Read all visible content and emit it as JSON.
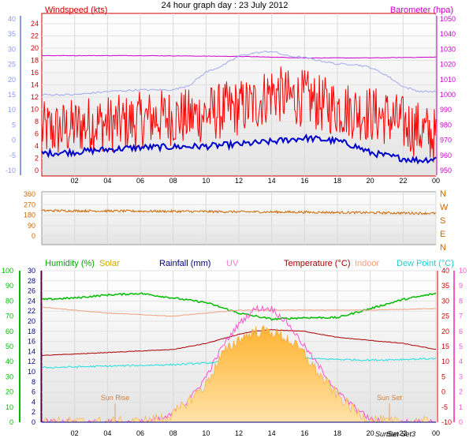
{
  "title": "24 hour graph day : 23 July 2012",
  "x_ticks": [
    "02",
    "04",
    "06",
    "08",
    "10",
    "12",
    "14",
    "16",
    "18",
    "20",
    "22",
    "00"
  ],
  "colors": {
    "wind": "#ff0000",
    "wind_avg": "#0000cc",
    "baro": "#cc00cc",
    "gust_baro_line": "#a0a8ee",
    "wind_dir": "#cc6600",
    "humidity": "#00bb00",
    "solar": "#ffb733",
    "rainfall": "#000080",
    "uv": "#ff55cc",
    "temperature": "#aa0000",
    "indoor": "#f0a080",
    "dew_point": "#22dddd",
    "axis_blue": "#8899ee",
    "axis_red": "#cc0000",
    "axis_magenta": "#cc00cc"
  },
  "chart_data": [
    {
      "id": "wind_baro",
      "type": "line",
      "left_label": "Windspeed (kts)",
      "right_label": "Barometer (hpa)",
      "outer_left_ticks": [
        "40",
        "35",
        "30",
        "25",
        "20",
        "15",
        "10",
        "5",
        "0",
        "-5",
        "-10"
      ],
      "left_ticks": [
        "24",
        "22",
        "20",
        "18",
        "16",
        "14",
        "12",
        "10",
        "8",
        "6",
        "4",
        "2",
        "0"
      ],
      "right_ticks": [
        "1050",
        "1040",
        "1030",
        "1020",
        "1010",
        "1000",
        "990",
        "980",
        "970",
        "960",
        "950"
      ],
      "left_range": [
        0,
        25
      ],
      "right_range": [
        947,
        1052
      ],
      "outer_range": [
        -10,
        40
      ],
      "series": [
        {
          "id": "wind_gust",
          "axis": "left",
          "color_key": "wind",
          "values_x": [
            1,
            3,
            5,
            7,
            9,
            11,
            13,
            14,
            15,
            16,
            17,
            19,
            21,
            23,
            24
          ],
          "values": [
            7,
            8,
            8,
            9,
            9,
            10,
            11,
            13,
            12,
            12,
            11,
            10,
            9,
            7,
            6
          ],
          "noise": 4.5
        },
        {
          "id": "wind_avg",
          "axis": "left",
          "color_key": "wind_avg",
          "values_x": [
            0,
            2,
            4,
            6,
            8,
            10,
            12,
            14,
            16,
            18,
            19,
            20,
            21,
            22,
            23,
            24
          ],
          "values": [
            3.4,
            3.6,
            4.0,
            4.3,
            4.4,
            4.5,
            4.8,
            5.2,
            5.8,
            5.3,
            4.6,
            3.5,
            3.0,
            2.6,
            2.3,
            2.6
          ],
          "noise": 0.5
        },
        {
          "id": "barometer",
          "axis": "right",
          "color_key": "baro",
          "values_x": [
            0,
            6,
            12,
            16,
            20,
            24
          ],
          "values": [
            1025,
            1025,
            1024.5,
            1023.5,
            1023.5,
            1024
          ],
          "noise": 0.15
        },
        {
          "id": "gust_light",
          "axis": "outer",
          "color_key": "gust_baro_line",
          "values_x": [
            0,
            2,
            4,
            6,
            8,
            9,
            10,
            11,
            12,
            13,
            14,
            15,
            16,
            18,
            19,
            20,
            21,
            22,
            23,
            24
          ],
          "values": [
            15,
            15,
            16,
            16.5,
            16.5,
            18,
            22,
            24,
            27,
            28,
            28.5,
            27,
            26.5,
            24.5,
            24.5,
            23.5,
            21,
            17.5,
            16,
            16
          ],
          "noise": 0.3
        }
      ]
    },
    {
      "id": "wind_direction",
      "type": "line",
      "left_ticks": [
        "360",
        "270",
        "180",
        "90",
        "0"
      ],
      "right_ticks": [
        "N",
        "W",
        "S",
        "E",
        "N"
      ],
      "range": [
        0,
        360
      ],
      "series": [
        {
          "id": "direction",
          "color_key": "wind_dir",
          "values_x": [
            0,
            4,
            8,
            12,
            16,
            20,
            24
          ],
          "values": [
            218,
            215,
            212,
            208,
            205,
            200,
            195
          ],
          "noise": 10
        }
      ]
    },
    {
      "id": "humidity_temperature",
      "type": "line",
      "labels": {
        "humidity": "Humidity (%)",
        "solar": "Solar",
        "rainfall": "Rainfall (mm)",
        "uv": "UV",
        "temperature": "Temperature (°C)",
        "indoor": "Indoor",
        "dew_point": "Dew Point (°C)"
      },
      "humidity_ticks": [
        "100",
        "90",
        "80",
        "70",
        "60",
        "50",
        "40",
        "30",
        "20",
        "10",
        "0"
      ],
      "rainfall_ticks": [
        "30",
        "28",
        "26",
        "24",
        "22",
        "20",
        "18",
        "16",
        "14",
        "12",
        "10",
        "8",
        "6",
        "4",
        "2",
        "0"
      ],
      "temperature_ticks": [
        "40",
        "35",
        "30",
        "25",
        "20",
        "15",
        "10",
        "5",
        "0",
        "-5",
        "-10"
      ],
      "uv_ticks": [
        "10",
        "9",
        "8",
        "7",
        "6",
        "5",
        "4",
        "3",
        "2",
        "1",
        "0"
      ],
      "humidity_range": [
        0,
        100
      ],
      "temperature_range": [
        -10,
        40
      ],
      "uv_range": [
        0,
        10
      ],
      "annotations": [
        "Sun Rise",
        "Sun Set",
        "SunSet",
        "Sun Set3"
      ],
      "series": [
        {
          "id": "humidity",
          "axis": "humidity",
          "color_key": "humidity",
          "values_x": [
            0,
            2,
            4,
            6,
            8,
            10,
            12,
            14,
            16,
            18,
            20,
            22,
            24
          ],
          "values": [
            81,
            82,
            84,
            85,
            82,
            79,
            72,
            68,
            69,
            69,
            75,
            81,
            85
          ],
          "noise": 0.6
        },
        {
          "id": "indoor",
          "axis": "temperature",
          "color_key": "indoor",
          "values_x": [
            0,
            4,
            8,
            12,
            16,
            20,
            24
          ],
          "values": [
            28,
            26,
            25,
            27,
            27,
            27,
            27.5
          ],
          "noise": 0.1
        },
        {
          "id": "temperature",
          "axis": "temperature",
          "color_key": "temperature",
          "values_x": [
            0,
            2,
            4,
            6,
            8,
            10,
            12,
            13,
            14,
            16,
            18,
            20,
            22,
            24
          ],
          "values": [
            12,
            12.5,
            13,
            13.5,
            14,
            16,
            19,
            20,
            20.5,
            20,
            18,
            17,
            16,
            14
          ],
          "noise": 0.1
        },
        {
          "id": "dew_point",
          "axis": "temperature",
          "color_key": "dew_point",
          "values_x": [
            0,
            4,
            8,
            10,
            12,
            14,
            16,
            20,
            24
          ],
          "values": [
            8,
            8.5,
            9,
            9.5,
            10.5,
            11,
            11,
            10.5,
            11
          ],
          "noise": 0.3
        },
        {
          "id": "uv",
          "axis": "uv",
          "color_key": "uv",
          "values_x": [
            0,
            5,
            6,
            7,
            8,
            9,
            10,
            11,
            12,
            13,
            14,
            15,
            16,
            17,
            18,
            19,
            20,
            21,
            24
          ],
          "values": [
            0,
            0,
            0,
            0.1,
            0.5,
            1.5,
            3,
            5,
            6.5,
            7.5,
            7.5,
            6.5,
            5,
            3.5,
            2,
            1,
            0.2,
            0,
            0
          ],
          "noise": 0.2
        },
        {
          "id": "solar",
          "axis": "uv",
          "color_key": "solar",
          "type": "area",
          "values_x": [
            0,
            5,
            6,
            7,
            8,
            9,
            10,
            11,
            12,
            13,
            14,
            15,
            16,
            17,
            18,
            19,
            20,
            21,
            24
          ],
          "values": [
            0,
            0,
            0,
            0.2,
            0.5,
            1.5,
            2.5,
            4.5,
            5.5,
            6,
            6,
            5.5,
            4.5,
            3,
            1.8,
            0.8,
            0.2,
            0,
            0
          ],
          "noise": 0.4
        },
        {
          "id": "rainfall",
          "axis": "rainfall",
          "color_key": "rainfall",
          "values_x": [
            0,
            24
          ],
          "values": [
            0,
            0
          ],
          "noise": 0
        }
      ]
    }
  ]
}
